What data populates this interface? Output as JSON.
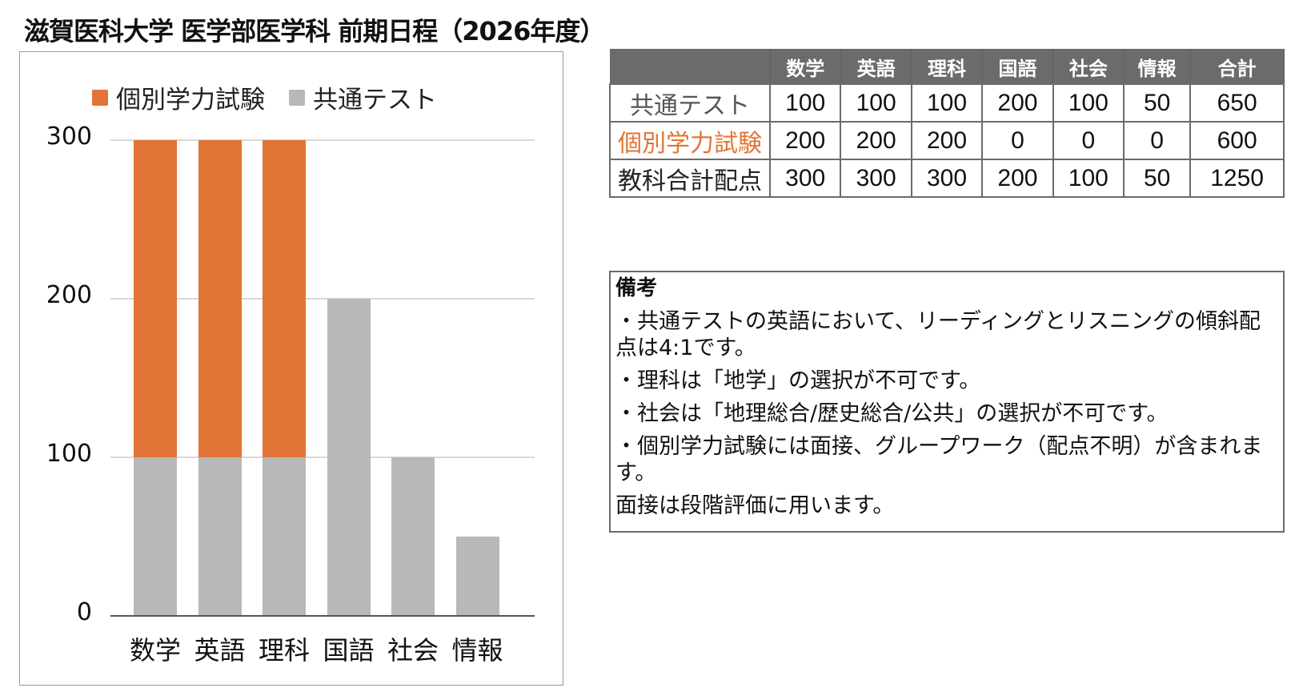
{
  "title": "滋賀医科大学 医学部医学科 前期日程（2026年度）",
  "colors": {
    "individual": "#E07535",
    "common": "#B8B8B8",
    "header_bg": "#6B6B6B",
    "common_label": "#555555",
    "individual_label": "#E07535"
  },
  "legend": [
    {
      "label": "個別学力試験",
      "color": "#E07535"
    },
    {
      "label": "共通テスト",
      "color": "#B8B8B8"
    }
  ],
  "chart_data": {
    "type": "bar",
    "stacked": true,
    "title": "",
    "categories": [
      "数学",
      "英語",
      "理科",
      "国語",
      "社会",
      "情報"
    ],
    "series": [
      {
        "name": "共通テスト",
        "color": "#B8B8B8",
        "values": [
          100,
          100,
          100,
          200,
          100,
          50
        ]
      },
      {
        "name": "個別学力試験",
        "color": "#E07535",
        "values": [
          200,
          200,
          200,
          0,
          0,
          0
        ]
      }
    ],
    "yticks": [
      "0",
      "100",
      "200",
      "300"
    ],
    "ylim": [
      0,
      300
    ],
    "xlabel": "",
    "ylabel": "",
    "grid": true,
    "legend_position": "top"
  },
  "table": {
    "headers": [
      "",
      "数学",
      "英語",
      "理科",
      "国語",
      "社会",
      "情報",
      "合計"
    ],
    "rows": [
      {
        "label": "共通テスト",
        "values": [
          "100",
          "100",
          "100",
          "200",
          "100",
          "50",
          "650"
        ]
      },
      {
        "label": "個別学力試験",
        "values": [
          "200",
          "200",
          "200",
          "0",
          "0",
          "0",
          "600"
        ]
      },
      {
        "label": "教科合計配点",
        "values": [
          "300",
          "300",
          "300",
          "200",
          "100",
          "50",
          "1250"
        ]
      }
    ]
  },
  "notes": {
    "heading": "備考",
    "lines": [
      "・共通テストの英語において、リーディングとリスニングの傾斜配点は4:1です。",
      "・理科は「地学」の選択が不可です。",
      "・社会は「地理総合/歴史総合/公共」の選択が不可です。",
      "・個別学力試験には面接、グループワーク（配点不明）が含まれます。",
      "面接は段階評価に用います。"
    ]
  }
}
